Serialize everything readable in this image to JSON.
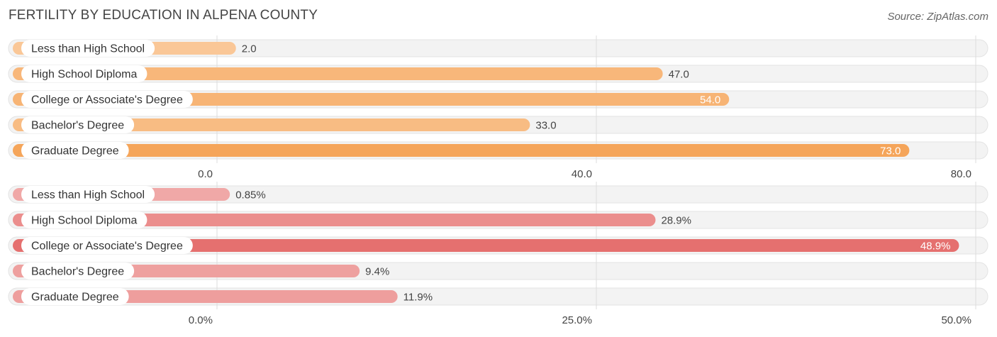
{
  "header": {
    "title": "FERTILITY BY EDUCATION IN ALPENA COUNTY",
    "source": "Source: ZipAtlas.com"
  },
  "chart_data": [
    {
      "type": "bar",
      "orientation": "horizontal",
      "categories": [
        "Less than High School",
        "High School Diploma",
        "College or Associate's Degree",
        "Bachelor's Degree",
        "Graduate Degree"
      ],
      "values": [
        2.0,
        47.0,
        54.0,
        33.0,
        73.0
      ],
      "value_labels": [
        "2.0",
        "47.0",
        "54.0",
        "33.0",
        "73.0"
      ],
      "xlim": [
        0,
        80
      ],
      "ticks": [
        0,
        40,
        80
      ],
      "tick_labels": [
        "0.0",
        "40.0",
        "80.0"
      ],
      "grid": true,
      "colors": {
        "bar": "#f5a55a",
        "bar_light": "#fac898"
      }
    },
    {
      "type": "bar",
      "orientation": "horizontal",
      "categories": [
        "Less than High School",
        "High School Diploma",
        "College or Associate's Degree",
        "Bachelor's Degree",
        "Graduate Degree"
      ],
      "values": [
        0.85,
        28.9,
        48.9,
        9.4,
        11.9
      ],
      "value_labels": [
        "0.85%",
        "28.9%",
        "48.9%",
        "9.4%",
        "11.9%"
      ],
      "xlim": [
        0,
        50
      ],
      "ticks": [
        0,
        25,
        50
      ],
      "tick_labels": [
        "0.0%",
        "25.0%",
        "50.0%"
      ],
      "grid": true,
      "colors": {
        "bar": "#e5706f",
        "bar_light": "#f0a9a8"
      }
    }
  ]
}
